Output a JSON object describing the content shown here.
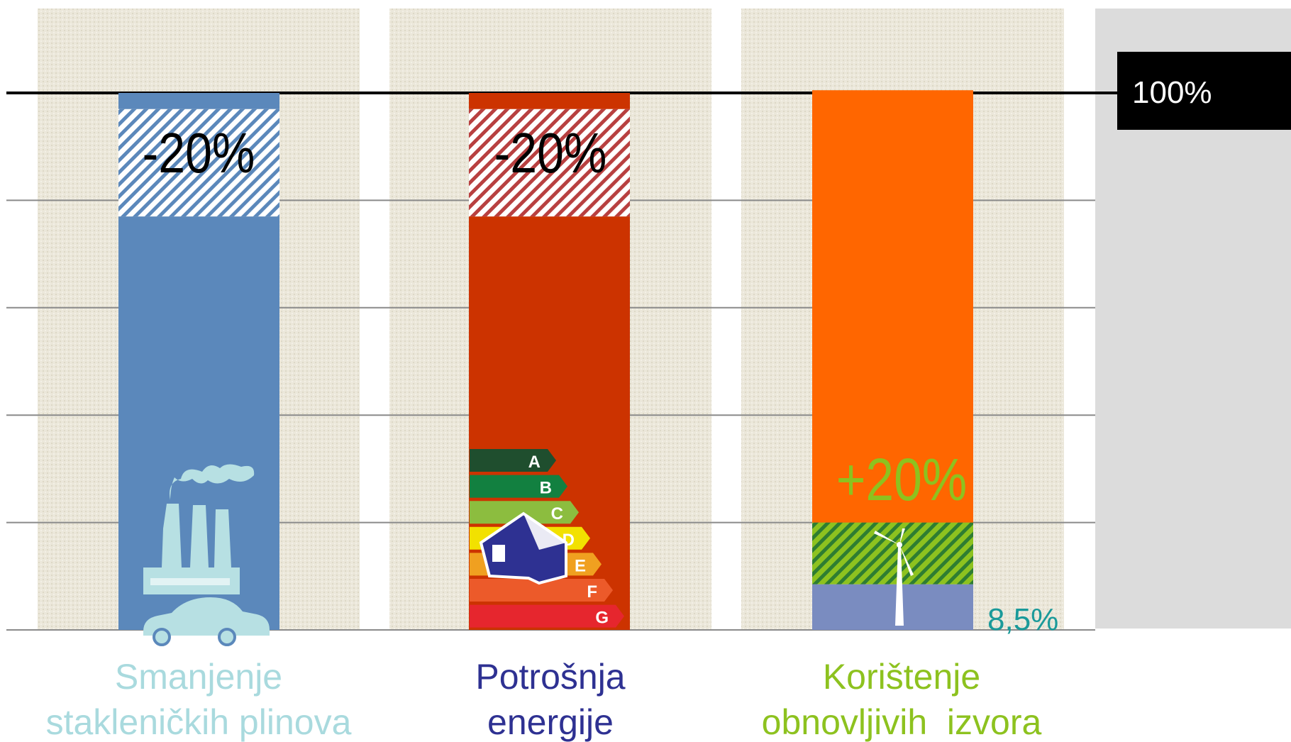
{
  "chart_data": {
    "type": "stacked_bar",
    "ylim": [
      0,
      100
    ],
    "grid_lines": [
      0,
      20,
      40,
      60,
      80,
      100
    ],
    "reference_line": {
      "value": 100,
      "label": "100%"
    },
    "bars": [
      {
        "category": [
          "Smanjenje",
          "stakleničkih plinova"
        ],
        "label_color": "#a9dade",
        "annotation": "-20%",
        "annotation_color": "#000000",
        "segments": [
          {
            "value": 77,
            "color": "#5b88bb"
          },
          {
            "value": 20,
            "color": "#5b88bb",
            "pattern": "hatch"
          },
          {
            "value": 3,
            "color": "#5b88bb"
          }
        ]
      },
      {
        "category": [
          "Potrošnja",
          "energije"
        ],
        "label_color": "#2e3192",
        "annotation": "-20%",
        "annotation_color": "#000000",
        "segments": [
          {
            "value": 77,
            "color": "#cc3300"
          },
          {
            "value": 20,
            "color": "#b84040",
            "pattern": "hatch"
          },
          {
            "value": 3,
            "color": "#cc3300"
          }
        ]
      },
      {
        "category": [
          "Korištenje",
          "obnovljivih  izvora"
        ],
        "label_color": "#8dc21f",
        "annotation": "+20%",
        "annotation_color": "#8dc21f",
        "segments": [
          {
            "value": 8.5,
            "color": "#7a8cc0",
            "value_label": "8,5%",
            "value_label_color": "#1a9a9a"
          },
          {
            "value": 11.5,
            "color": "#2e7d32",
            "pattern": "hatch"
          },
          {
            "value": 80.5,
            "color": "#ff6600"
          }
        ]
      }
    ],
    "energy_classes": [
      {
        "label": "A",
        "color": "#1f4e2e"
      },
      {
        "label": "B",
        "color": "#128040"
      },
      {
        "label": "C",
        "color": "#8cbd3f"
      },
      {
        "label": "D",
        "color": "#f2e100"
      },
      {
        "label": "E",
        "color": "#f0a020"
      },
      {
        "label": "F",
        "color": "#ec5a2a"
      },
      {
        "label": "G",
        "color": "#e6262e"
      }
    ]
  }
}
